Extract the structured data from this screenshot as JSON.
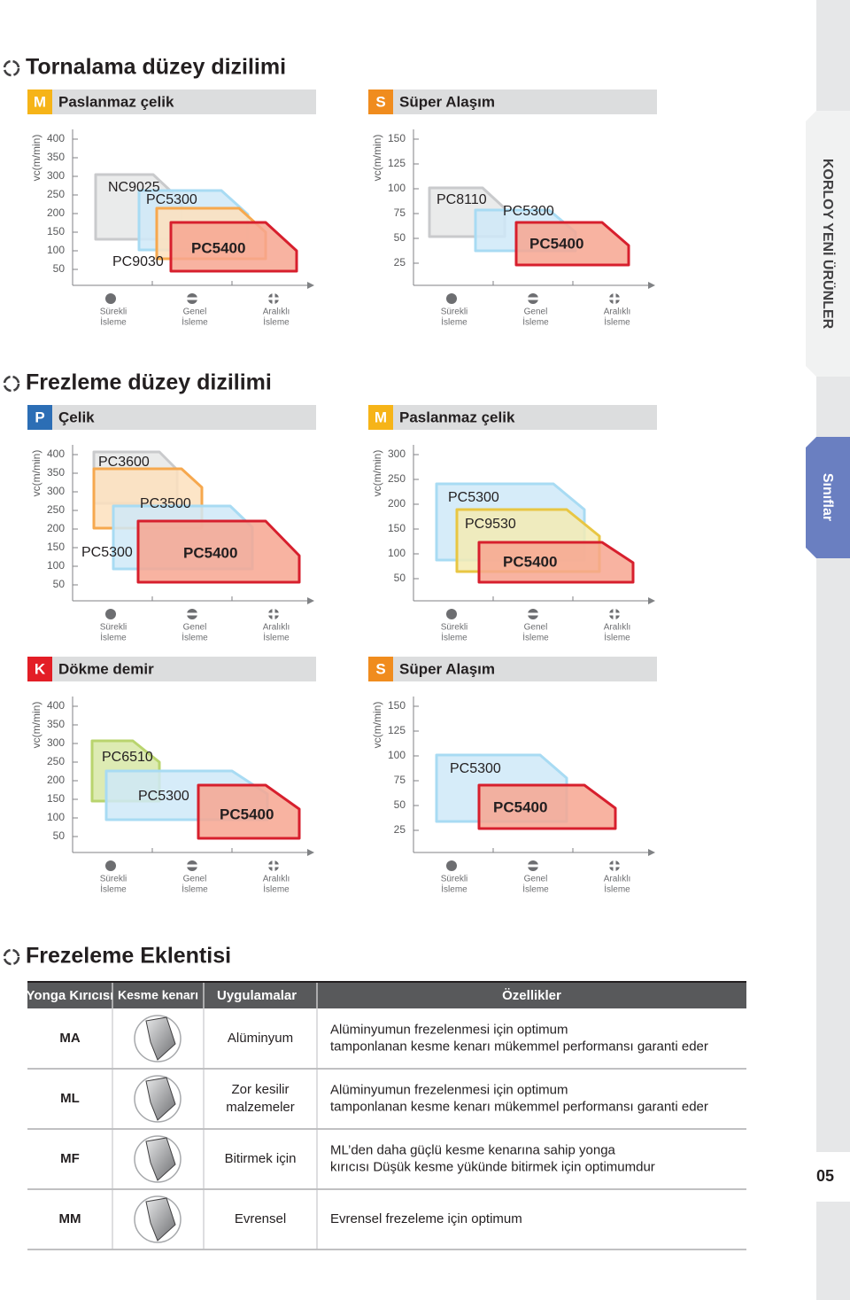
{
  "side_tabs": {
    "series": "KORLOY YENİ ÜRÜNLER",
    "section": "Sınıflar",
    "page": "05"
  },
  "sections": [
    {
      "title": "Tornalama düzey dizilimi"
    },
    {
      "title": "Frezleme düzey dizilimi"
    },
    {
      "title": "Frezeleme Eklentisi"
    }
  ],
  "axis_label": "vc(m/min)",
  "x_labels": [
    [
      "Sürekli",
      "İsleme"
    ],
    [
      "Genel",
      "İsleme"
    ],
    [
      "Aralıklı",
      "İsleme"
    ]
  ],
  "panels": [
    {
      "badge": "M",
      "title": "Paslanmaz çelik",
      "yticks": [
        400,
        350,
        300,
        250,
        200,
        150,
        100,
        50
      ],
      "grades": [
        "NC9025",
        "PC5300",
        "PC9030",
        "PC5400"
      ]
    },
    {
      "badge": "S",
      "title": "Süper Alaşım",
      "yticks": [
        150,
        125,
        100,
        75,
        50,
        25
      ],
      "grades": [
        "PC8110",
        "PC5300",
        "PC5400"
      ]
    },
    {
      "badge": "P",
      "title": "Çelik",
      "yticks": [
        400,
        350,
        300,
        250,
        200,
        150,
        100,
        50
      ],
      "grades": [
        "PC3600",
        "PC3500",
        "PC5300",
        "PC5400"
      ]
    },
    {
      "badge": "M",
      "title": "Paslanmaz çelik",
      "yticks": [
        300,
        250,
        200,
        150,
        100,
        50
      ],
      "grades": [
        "PC5300",
        "PC9530",
        "PC5400"
      ]
    },
    {
      "badge": "K",
      "title": "Dökme demir",
      "yticks": [
        400,
        350,
        300,
        250,
        200,
        150,
        100,
        50
      ],
      "grades": [
        "PC6510",
        "PC5300",
        "PC5400"
      ]
    },
    {
      "badge": "S",
      "title": "Süper Alaşım",
      "yticks": [
        150,
        125,
        100,
        75,
        50,
        25
      ],
      "grades": [
        "PC5300",
        "PC5400"
      ]
    }
  ],
  "table": {
    "header": [
      "Yonga Kırıcısı",
      "Kesme kenarı",
      "Uygulamalar",
      "Özellikler"
    ],
    "rows": [
      {
        "code": "MA",
        "application": [
          "Alüminyum"
        ],
        "features": [
          "Alüminyumun frezelenmesi için optimum",
          "tamponlanan kesme kenarı mükemmel performansı garanti eder"
        ]
      },
      {
        "code": "ML",
        "application": [
          "Zor kesilir",
          "malzemeler"
        ],
        "features": [
          "Alüminyumun frezelenmesi için optimum",
          "tamponlanan kesme kenarı mükemmel performansı garanti eder"
        ]
      },
      {
        "code": "MF",
        "application": [
          "Bitirmek için"
        ],
        "features": [
          "ML’den daha güçlü kesme kenarına sahip yonga",
          "kırıcısı Düşük kesme yükünde bitirmek için optimumdur"
        ]
      },
      {
        "code": "MM",
        "application": [
          "Evrensel"
        ],
        "features": [
          "Evrensel frezeleme için optimum"
        ]
      }
    ]
  }
}
